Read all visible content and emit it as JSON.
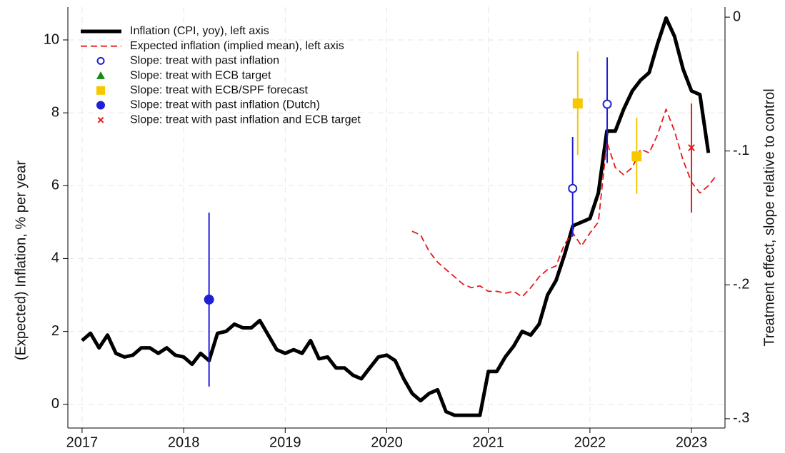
{
  "chart_data": {
    "type": "line",
    "y_label": "(Expected) Inflation, % per year",
    "y2_label": "Treatment effect, slope relative to control",
    "xlim": [
      2016.86,
      2023.33
    ],
    "xticks": [
      2017,
      2018,
      2019,
      2020,
      2021,
      2022,
      2023
    ],
    "ylim": [
      -0.65,
      10.9
    ],
    "yticks": [
      0,
      2,
      4,
      6,
      8,
      10
    ],
    "y2lim": [
      -0.307,
      0.0075
    ],
    "y2ticks": [
      {
        "value": 0,
        "label": "0"
      },
      {
        "value": -0.1,
        "label": "-.1"
      },
      {
        "value": -0.2,
        "label": "-.2"
      },
      {
        "value": -0.3,
        "label": "-.3"
      }
    ],
    "grid": true,
    "legend": "top-left",
    "series": [
      {
        "name": "Inflation (CPI, yoy), left axis",
        "color": "#000000",
        "line": "solid",
        "x": [
          2017,
          2017.083,
          2017.167,
          2017.25,
          2017.333,
          2017.417,
          2017.5,
          2017.583,
          2017.667,
          2017.75,
          2017.833,
          2017.917,
          2018,
          2018.083,
          2018.167,
          2018.25,
          2018.333,
          2018.417,
          2018.5,
          2018.583,
          2018.667,
          2018.75,
          2018.833,
          2018.917,
          2019,
          2019.083,
          2019.167,
          2019.25,
          2019.333,
          2019.417,
          2019.5,
          2019.583,
          2019.667,
          2019.75,
          2019.833,
          2019.917,
          2020,
          2020.083,
          2020.167,
          2020.25,
          2020.333,
          2020.417,
          2020.5,
          2020.583,
          2020.667,
          2020.75,
          2020.833,
          2020.917,
          2021,
          2021.083,
          2021.167,
          2021.25,
          2021.333,
          2021.417,
          2021.5,
          2021.583,
          2021.667,
          2021.75,
          2021.833,
          2021.917,
          2022,
          2022.083,
          2022.167,
          2022.25,
          2022.333,
          2022.417,
          2022.5,
          2022.583,
          2022.667,
          2022.75,
          2022.833,
          2022.917,
          2023,
          2023.083,
          2023.167
        ],
        "values": [
          1.75,
          1.95,
          1.55,
          1.9,
          1.4,
          1.3,
          1.35,
          1.55,
          1.55,
          1.4,
          1.55,
          1.35,
          1.3,
          1.1,
          1.4,
          1.2,
          1.95,
          2.0,
          2.2,
          2.1,
          2.1,
          2.3,
          1.9,
          1.5,
          1.4,
          1.5,
          1.4,
          1.75,
          1.25,
          1.3,
          1.0,
          1.0,
          0.8,
          0.7,
          1.0,
          1.3,
          1.35,
          1.2,
          0.7,
          0.3,
          0.1,
          0.3,
          0.4,
          -0.2,
          -0.3,
          -0.3,
          -0.3,
          -0.3,
          0.9,
          0.9,
          1.3,
          1.6,
          2.0,
          1.9,
          2.2,
          3.0,
          3.4,
          4.1,
          4.9,
          5.0,
          5.1,
          5.8,
          7.5,
          7.5,
          8.1,
          8.6,
          8.9,
          9.1,
          9.9,
          10.6,
          10.1,
          9.2,
          8.6,
          8.5,
          6.9
        ]
      },
      {
        "name": "Expected inflation (implied mean), left axis",
        "color": "#e8191b",
        "line": "dashed",
        "x": [
          2020.25,
          2020.333,
          2020.417,
          2020.5,
          2020.583,
          2020.667,
          2020.75,
          2020.833,
          2020.917,
          2021,
          2021.083,
          2021.167,
          2021.25,
          2021.333,
          2021.417,
          2021.5,
          2021.583,
          2021.667,
          2021.75,
          2021.833,
          2021.917,
          2022,
          2022.083,
          2022.167,
          2022.25,
          2022.333,
          2022.417,
          2022.5,
          2022.583,
          2022.667,
          2022.75,
          2022.833,
          2022.917,
          2023,
          2023.083,
          2023.167,
          2023.25
        ],
        "values": [
          4.75,
          4.65,
          4.2,
          3.9,
          3.7,
          3.5,
          3.3,
          3.2,
          3.25,
          3.1,
          3.1,
          3.05,
          3.1,
          2.95,
          3.2,
          3.5,
          3.7,
          3.8,
          4.4,
          4.7,
          4.35,
          4.7,
          5.0,
          7.2,
          6.5,
          6.3,
          6.5,
          7.0,
          6.9,
          7.4,
          8.1,
          7.5,
          6.7,
          6.1,
          5.8,
          6.0,
          6.3
        ]
      },
      {
        "name": "Slope: treat with past inflation",
        "color": "#1f1fd6",
        "marker": "hollow-circle",
        "axis": "y2",
        "x": [
          2021.83,
          2022.17
        ],
        "values": [
          -0.128,
          -0.065
        ],
        "lower": [
          -0.164,
          -0.109
        ],
        "upper": [
          -0.0895,
          -0.03
        ]
      },
      {
        "name": "Slope: treat with ECB target",
        "color": "#138a13",
        "marker": "triangle",
        "axis": "y2",
        "x": [],
        "values": [],
        "lower": [],
        "upper": []
      },
      {
        "name": "Slope: treat with ECB/SPF forecast",
        "color": "#f7c800",
        "marker": "square",
        "axis": "y2",
        "x": [
          2021.88,
          2022.46
        ],
        "values": [
          -0.0645,
          -0.104
        ],
        "lower": [
          -0.103,
          -0.132
        ],
        "upper": [
          -0.0256,
          -0.075
        ]
      },
      {
        "name": "Slope: treat with past inflation (Dutch)",
        "color": "#1f1fd6",
        "marker": "circle",
        "axis": "y2",
        "x": [
          2018.25
        ],
        "values": [
          -0.211
        ],
        "lower": [
          -0.276
        ],
        "upper": [
          -0.146
        ]
      },
      {
        "name": "Slope: treat with past inflation and ECB target",
        "color": "#e8191b",
        "marker": "cross",
        "axis": "y2",
        "x": [
          2023.0
        ],
        "values": [
          -0.0975
        ],
        "lower": [
          -0.146
        ],
        "upper": [
          -0.0645
        ]
      }
    ]
  }
}
